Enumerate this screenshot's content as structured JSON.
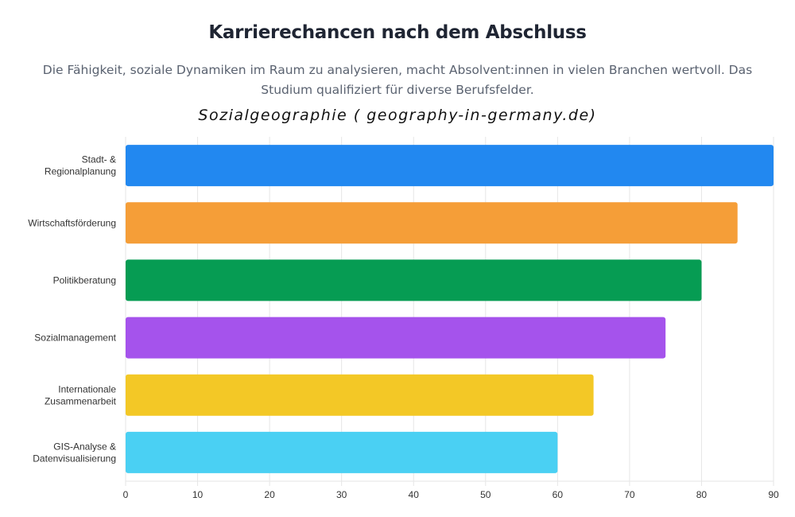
{
  "header": {
    "title": "Karrierechancen nach dem Abschluss",
    "subtitle_line1": "Die Fähigkeit, soziale Dynamiken im Raum zu analysieren, macht Absolvent:innen in vielen Branchen wertvoll. Das",
    "subtitle_line2": "Studium qualifiziert für diverse Berufsfelder.",
    "watermark": "Sozialgeographie ( geography-in-germany.de)"
  },
  "chart_data": {
    "type": "bar",
    "orientation": "horizontal",
    "title": "Karrierechancen nach dem Abschluss",
    "xlabel": "",
    "ylabel": "",
    "xlim": [
      0,
      90
    ],
    "grid": true,
    "legend": "none",
    "x_ticks": [
      "0",
      "10",
      "20",
      "30",
      "40",
      "50",
      "60",
      "70",
      "80",
      "90"
    ],
    "categories": [
      [
        "Stadt- &",
        "Regionalplanung"
      ],
      [
        "Wirtschaftsförderung"
      ],
      [
        "Politikberatung"
      ],
      [
        "Sozialmanagement"
      ],
      [
        "Internationale",
        "Zusammenarbeit"
      ],
      [
        "GIS-Analyse &",
        "Datenvisualisierung"
      ]
    ],
    "values": [
      90,
      85,
      80,
      75,
      65,
      60
    ],
    "colors": [
      "#2288f0",
      "#f59e38",
      "#069c53",
      "#a553ec",
      "#f3c826",
      "#4ad0f3"
    ]
  }
}
